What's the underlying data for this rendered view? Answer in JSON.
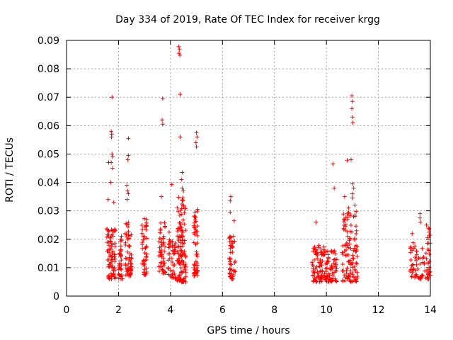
{
  "chart_data": {
    "type": "scatter",
    "title": "Day 334 of 2019, Rate Of TEC Index for receiver krgg",
    "xlabel": "GPS time / hours",
    "ylabel": "ROTI / TECUs",
    "xlim": [
      0,
      14
    ],
    "ylim": [
      0,
      0.09
    ],
    "xticks": [
      0,
      2,
      4,
      6,
      8,
      10,
      12,
      14
    ],
    "xtick_labels": [
      "0",
      "2",
      "4",
      "6",
      "8",
      "10",
      "12",
      "14"
    ],
    "yticks": [
      0,
      0.01,
      0.02,
      0.03,
      0.04,
      0.05,
      0.06,
      0.07,
      0.08,
      0.09
    ],
    "ytick_labels": [
      "0",
      "0.01",
      "0.02",
      "0.03",
      "0.04",
      "0.05",
      "0.06",
      "0.07",
      "0.08",
      "0.09"
    ],
    "grid": true,
    "marker": "+",
    "color": "#ff0000",
    "clusters": [
      {
        "x_range": [
          1.55,
          1.9
        ],
        "count": 80,
        "y_lo": 0.006,
        "y_hi": 0.025
      },
      {
        "x_range": [
          2.0,
          2.15
        ],
        "count": 35,
        "y_lo": 0.006,
        "y_hi": 0.022
      },
      {
        "x_range": [
          2.25,
          2.5
        ],
        "count": 60,
        "y_lo": 0.007,
        "y_hi": 0.026
      },
      {
        "x_range": [
          2.9,
          3.1
        ],
        "count": 45,
        "y_lo": 0.007,
        "y_hi": 0.028
      },
      {
        "x_range": [
          3.55,
          3.8
        ],
        "count": 50,
        "y_lo": 0.008,
        "y_hi": 0.027
      },
      {
        "x_range": [
          3.9,
          4.2
        ],
        "count": 45,
        "y_lo": 0.006,
        "y_hi": 0.02
      },
      {
        "x_range": [
          4.25,
          4.6
        ],
        "count": 120,
        "y_lo": 0.005,
        "y_hi": 0.035
      },
      {
        "x_range": [
          4.9,
          5.05
        ],
        "count": 50,
        "y_lo": 0.007,
        "y_hi": 0.03
      },
      {
        "x_range": [
          6.25,
          6.5
        ],
        "count": 45,
        "y_lo": 0.006,
        "y_hi": 0.022
      },
      {
        "x_range": [
          9.45,
          9.95
        ],
        "count": 80,
        "y_lo": 0.005,
        "y_hi": 0.018
      },
      {
        "x_range": [
          9.95,
          10.4
        ],
        "count": 70,
        "y_lo": 0.005,
        "y_hi": 0.016
      },
      {
        "x_range": [
          10.6,
          11.2
        ],
        "count": 110,
        "y_lo": 0.005,
        "y_hi": 0.03
      },
      {
        "x_range": [
          13.2,
          13.9
        ],
        "count": 60,
        "y_lo": 0.006,
        "y_hi": 0.02
      },
      {
        "x_range": [
          13.9,
          14.0
        ],
        "count": 25,
        "y_lo": 0.006,
        "y_hi": 0.024
      }
    ],
    "highlights": [
      {
        "x": 1.75,
        "y": 0.07
      },
      {
        "x": 1.72,
        "y": 0.058
      },
      {
        "x": 1.74,
        "y": 0.057
      },
      {
        "x": 1.73,
        "y": 0.056
      },
      {
        "x": 1.75,
        "y": 0.05
      },
      {
        "x": 1.78,
        "y": 0.049
      },
      {
        "x": 1.72,
        "y": 0.047
      },
      {
        "x": 1.77,
        "y": 0.045
      },
      {
        "x": 1.62,
        "y": 0.047
      },
      {
        "x": 1.7,
        "y": 0.04
      },
      {
        "x": 1.6,
        "y": 0.034
      },
      {
        "x": 1.82,
        "y": 0.033
      },
      {
        "x": 2.38,
        "y": 0.0555
      },
      {
        "x": 2.38,
        "y": 0.0495
      },
      {
        "x": 2.36,
        "y": 0.048
      },
      {
        "x": 2.32,
        "y": 0.039
      },
      {
        "x": 2.35,
        "y": 0.037
      },
      {
        "x": 2.38,
        "y": 0.036
      },
      {
        "x": 2.33,
        "y": 0.034
      },
      {
        "x": 3.7,
        "y": 0.0695
      },
      {
        "x": 3.68,
        "y": 0.062
      },
      {
        "x": 3.7,
        "y": 0.0605
      },
      {
        "x": 3.65,
        "y": 0.035
      },
      {
        "x": 4.05,
        "y": 0.0393
      },
      {
        "x": 3.95,
        "y": 0.0225
      },
      {
        "x": 4.32,
        "y": 0.0878
      },
      {
        "x": 4.35,
        "y": 0.0868
      },
      {
        "x": 4.33,
        "y": 0.0855
      },
      {
        "x": 4.36,
        "y": 0.0848
      },
      {
        "x": 4.37,
        "y": 0.071
      },
      {
        "x": 4.37,
        "y": 0.056
      },
      {
        "x": 4.45,
        "y": 0.0435
      },
      {
        "x": 4.42,
        "y": 0.041
      },
      {
        "x": 4.45,
        "y": 0.038
      },
      {
        "x": 4.5,
        "y": 0.037
      },
      {
        "x": 5.0,
        "y": 0.0575
      },
      {
        "x": 5.02,
        "y": 0.056
      },
      {
        "x": 4.98,
        "y": 0.054
      },
      {
        "x": 5.0,
        "y": 0.0525
      },
      {
        "x": 5.05,
        "y": 0.0305
      },
      {
        "x": 6.32,
        "y": 0.035
      },
      {
        "x": 6.3,
        "y": 0.0335
      },
      {
        "x": 6.3,
        "y": 0.0295
      },
      {
        "x": 6.45,
        "y": 0.0265
      },
      {
        "x": 9.6,
        "y": 0.026
      },
      {
        "x": 10.25,
        "y": 0.0465
      },
      {
        "x": 10.3,
        "y": 0.038
      },
      {
        "x": 10.98,
        "y": 0.0705
      },
      {
        "x": 11.0,
        "y": 0.0685
      },
      {
        "x": 10.98,
        "y": 0.066
      },
      {
        "x": 11.0,
        "y": 0.063
      },
      {
        "x": 11.02,
        "y": 0.061
      },
      {
        "x": 10.95,
        "y": 0.048
      },
      {
        "x": 10.8,
        "y": 0.0478
      },
      {
        "x": 11.0,
        "y": 0.0395
      },
      {
        "x": 11.05,
        "y": 0.038
      },
      {
        "x": 11.0,
        "y": 0.036
      },
      {
        "x": 11.0,
        "y": 0.0345
      },
      {
        "x": 10.85,
        "y": 0.031
      },
      {
        "x": 10.8,
        "y": 0.029
      },
      {
        "x": 11.1,
        "y": 0.032
      },
      {
        "x": 10.7,
        "y": 0.035
      },
      {
        "x": 13.6,
        "y": 0.029
      },
      {
        "x": 13.6,
        "y": 0.0275
      },
      {
        "x": 13.62,
        "y": 0.026
      },
      {
        "x": 13.3,
        "y": 0.022
      },
      {
        "x": 13.85,
        "y": 0.025
      },
      {
        "x": 13.95,
        "y": 0.0225
      }
    ]
  }
}
